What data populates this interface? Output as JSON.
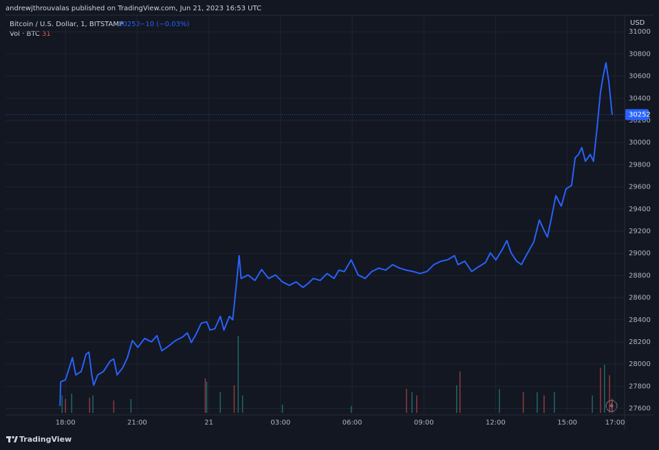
{
  "chart_data": {
    "type": "line",
    "published": "andrewjthrouvalas published on TradingView.com, Jun 21, 2023 16:53 UTC",
    "title": "Bitcoin / U.S. Dollar, 1, BITSTAMP",
    "change_label": "−10 (−0.03%)",
    "volume_label": "Vol · BTC",
    "y_unit": "USD",
    "brand": "TradingView",
    "grid": true,
    "xlim": [
      15.49,
      41.4
    ],
    "xticks": [
      {
        "value": 18,
        "label": "18:00"
      },
      {
        "value": 21,
        "label": "21:00"
      },
      {
        "value": 24,
        "label": "21"
      },
      {
        "value": 27,
        "label": "03:00"
      },
      {
        "value": 30,
        "label": "06:00"
      },
      {
        "value": 33,
        "label": "09:00"
      },
      {
        "value": 36,
        "label": "12:00"
      },
      {
        "value": 39,
        "label": "15:00"
      },
      {
        "value": 41,
        "label": "17:00"
      }
    ],
    "ylim": [
      27560,
      31150
    ],
    "yticks": [
      27600,
      27800,
      28000,
      28200,
      28400,
      28600,
      28800,
      29000,
      29200,
      29400,
      29600,
      29800,
      30000,
      30200,
      30400,
      30600,
      30800,
      31000
    ],
    "series": [
      {
        "color": "#2962ff",
        "x": [
          17.77,
          17.8,
          18.0,
          18.29,
          18.43,
          18.66,
          18.86,
          18.98,
          19.1,
          19.18,
          19.35,
          19.59,
          19.87,
          20.02,
          20.16,
          20.39,
          20.59,
          20.8,
          21.03,
          21.31,
          21.6,
          21.83,
          22.03,
          22.32,
          22.61,
          22.9,
          23.1,
          23.27,
          23.48,
          23.68,
          23.91,
          24.05,
          24.25,
          24.48,
          24.63,
          24.86,
          25.0,
          25.15,
          25.27,
          25.35,
          25.64,
          25.93,
          26.21,
          26.5,
          26.79,
          27.08,
          27.37,
          27.65,
          27.94,
          28.17,
          28.37,
          28.66,
          28.95,
          29.24,
          29.44,
          29.67,
          29.96,
          30.25,
          30.54,
          30.82,
          31.11,
          31.4,
          31.69,
          31.98,
          32.26,
          32.55,
          32.84,
          33.13,
          33.42,
          33.71,
          33.99,
          34.28,
          34.43,
          34.71,
          35.0,
          35.29,
          35.58,
          35.78,
          36.01,
          36.3,
          36.47,
          36.65,
          36.88,
          37.08,
          37.31,
          37.6,
          37.83,
          38.03,
          38.17,
          38.32,
          38.52,
          38.75,
          38.95,
          39.18,
          39.33,
          39.47,
          39.61,
          39.76,
          39.96,
          40.1,
          40.25,
          40.39,
          40.51,
          40.62,
          40.74,
          40.88
        ],
        "values": [
          27622,
          27840,
          27859,
          28058,
          27902,
          27933,
          28089,
          28108,
          27902,
          27809,
          27902,
          27933,
          28027,
          28046,
          27902,
          27965,
          28058,
          28213,
          28151,
          28232,
          28201,
          28257,
          28120,
          28163,
          28213,
          28244,
          28282,
          28195,
          28276,
          28369,
          28381,
          28307,
          28319,
          28431,
          28307,
          28431,
          28400,
          28711,
          28979,
          28773,
          28804,
          28755,
          28854,
          28773,
          28804,
          28742,
          28711,
          28742,
          28692,
          28730,
          28773,
          28755,
          28817,
          28773,
          28848,
          28836,
          28941,
          28804,
          28773,
          28836,
          28866,
          28848,
          28898,
          28866,
          28848,
          28836,
          28817,
          28836,
          28898,
          28929,
          28941,
          28979,
          28898,
          28929,
          28836,
          28879,
          28917,
          29004,
          28941,
          29041,
          29115,
          29004,
          28929,
          28898,
          28991,
          29103,
          29301,
          29208,
          29146,
          29301,
          29520,
          29426,
          29582,
          29613,
          29862,
          29893,
          29955,
          29831,
          29893,
          29831,
          30142,
          30453,
          30608,
          30720,
          30546,
          30252
        ]
      }
    ],
    "volume": [
      {
        "color": "#26a69a",
        "x": [
          17.86,
          18.26,
          19.15,
          20.74,
          23.91,
          24.48,
          25.23,
          25.41,
          27.08,
          29.96,
          32.5,
          34.37,
          36.16,
          37.74,
          38.46,
          40.05,
          40.56
        ],
        "values": [
          38,
          42,
          38,
          30,
          68,
          45,
          168,
          38,
          18,
          15,
          45,
          60,
          52,
          45,
          45,
          38,
          105
        ]
      },
      {
        "color": "#ef5350",
        "x": [
          18.0,
          19.01,
          20.02,
          23.85,
          25.06,
          32.27,
          32.7,
          34.51,
          37.16,
          38.03,
          40.39,
          40.77,
          40.88
        ],
        "values": [
          30,
          33,
          27,
          75,
          60,
          52,
          38,
          90,
          45,
          38,
          98,
          82,
          31
        ]
      }
    ]
  }
}
